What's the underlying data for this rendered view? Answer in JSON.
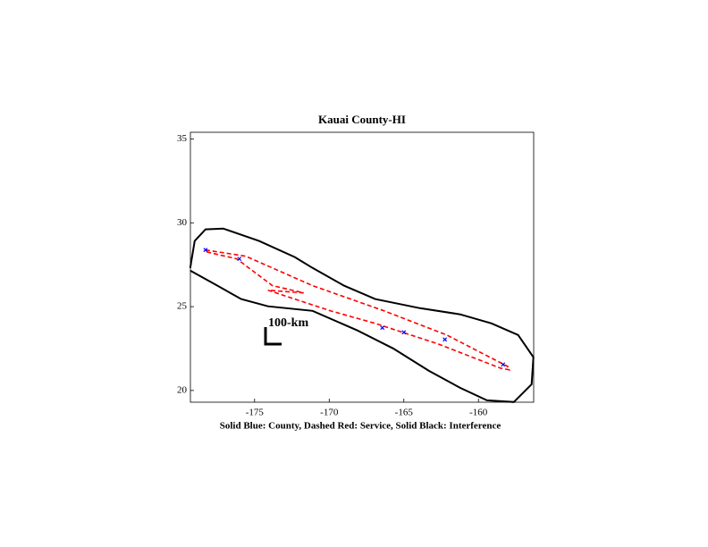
{
  "chart_data": {
    "type": "line",
    "title": "Kauai County-HI",
    "xlabel": "Solid Blue: County, Dashed Red: Service, Solid Black: Interference",
    "annotation": "100-km",
    "xlim": [
      -179.3,
      -156.3
    ],
    "ylim": [
      19.3,
      35.4
    ],
    "xticks": [
      -175,
      -170,
      -165,
      -160
    ],
    "yticks": [
      20,
      25,
      30,
      35
    ],
    "series": [
      {
        "color": "#000000",
        "style": "solid",
        "x": [
          -179.31,
          -179.01,
          -178.29,
          -177.1,
          -174.7,
          -172.31,
          -171.11,
          -169.01,
          -166.92,
          -163.92,
          -161.23,
          -159.13,
          -157.34,
          -156.32,
          -156.44,
          -157.63,
          -159.43,
          -161.23,
          -163.32,
          -165.72,
          -168.11,
          -171.11,
          -174.1,
          -175.9,
          -177.69,
          -179.31
        ],
        "y": [
          27.31,
          28.92,
          29.61,
          29.66,
          28.92,
          27.96,
          27.31,
          26.25,
          25.45,
          24.91,
          24.54,
          24.0,
          23.31,
          21.98,
          20.37,
          19.31,
          19.41,
          20.16,
          21.17,
          22.51,
          23.58,
          24.75,
          25.02,
          25.45,
          26.35,
          27.15
        ]
      },
      {
        "color": "#ff0000",
        "style": "dashed",
        "x": [
          -178.29,
          -175.6,
          -171.11,
          -166.32,
          -162.13,
          -158.05,
          -157.93,
          -158.53,
          -162.72,
          -166.92,
          -169.91,
          -172.31,
          -174.1,
          -171.71,
          -173.8,
          -176.2,
          -178.29
        ],
        "y": [
          28.38,
          28.01,
          26.25,
          24.75,
          23.31,
          21.44,
          21.23,
          21.33,
          22.78,
          24.0,
          24.75,
          25.45,
          25.98,
          25.82,
          26.25,
          27.85,
          28.28
        ]
      },
      {
        "color": "#0000ff",
        "style": "markers",
        "x": [
          -178.29,
          -176.02,
          -166.44,
          -165.0,
          -162.25,
          -158.35
        ],
        "y": [
          28.38,
          27.85,
          23.74,
          23.47,
          23.04,
          21.55
        ]
      }
    ]
  }
}
